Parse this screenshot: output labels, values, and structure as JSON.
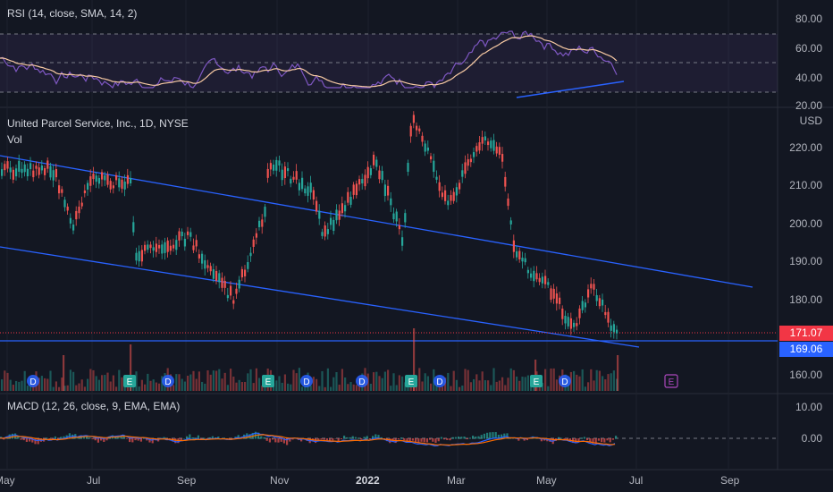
{
  "panes": {
    "rsi": {
      "title": "RSI (14, close, SMA, 14, 2)",
      "levels": [
        "80.00",
        "60.00",
        "40.00",
        "20.00"
      ]
    },
    "price": {
      "title": "United Parcel Service, Inc., 1D, NYSE",
      "vol_label": "Vol",
      "currency": "USD",
      "levels": [
        "220.00",
        "210.00",
        "200.00",
        "190.00",
        "180.00",
        "160.00"
      ],
      "last_price": "171.07",
      "support_price": "169.06"
    },
    "macd": {
      "title": "MACD (12, 26, close, 9, EMA, EMA)",
      "levels": [
        "10.00",
        "0.00"
      ]
    }
  },
  "x_axis": [
    "May",
    "Jul",
    "Sep",
    "Nov",
    "2022",
    "Mar",
    "May",
    "Jul",
    "Sep"
  ],
  "events": [
    "D",
    "E",
    "D",
    "E",
    "D",
    "E",
    "D",
    "E",
    "D",
    "E"
  ],
  "colors": {
    "up": "#26a69a",
    "down": "#ef5350",
    "rsi": "#7e57c2",
    "rsi_ma": "#f7c9a3",
    "trendline": "#2962ff",
    "last_price": "#f23645",
    "support": "#2962ff",
    "macd": "#2962ff",
    "signal": "#ff6d00"
  }
}
